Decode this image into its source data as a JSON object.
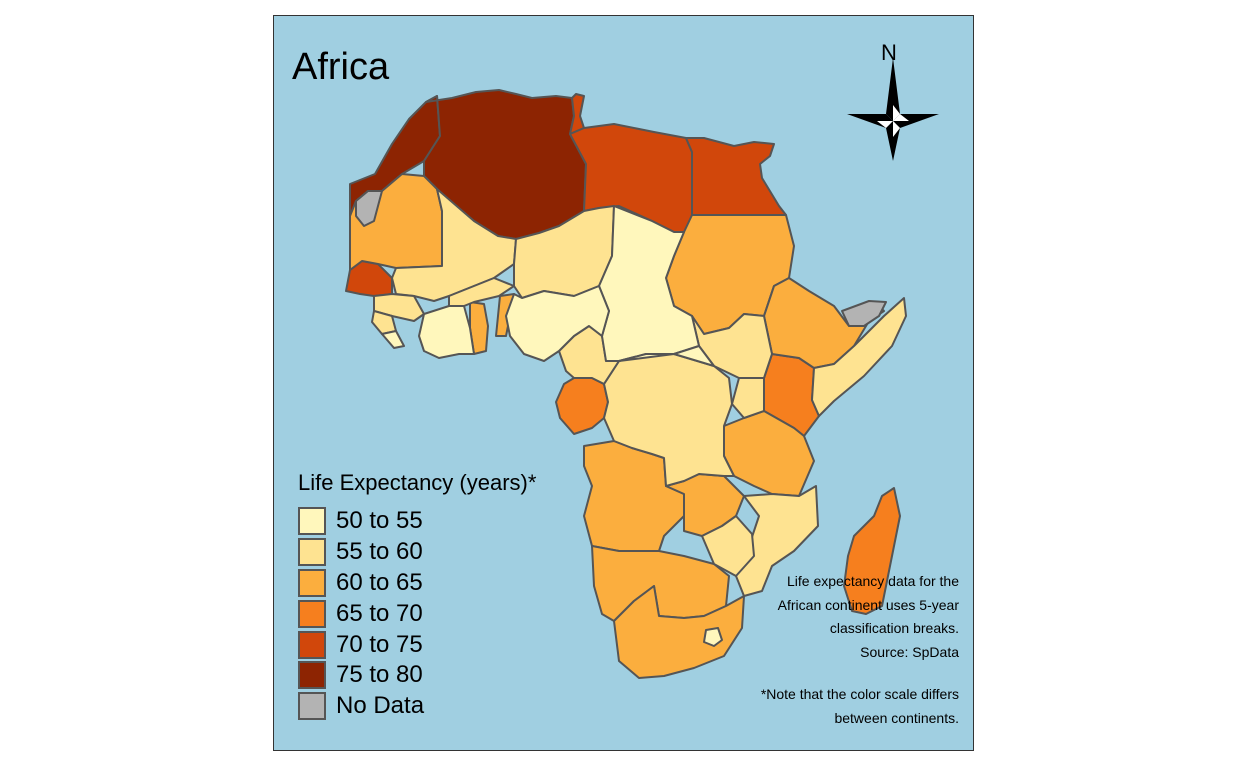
{
  "map": {
    "title": "Africa",
    "compass_label": "N",
    "water_color": "#a0cfe1",
    "border_color": "#555555"
  },
  "legend": {
    "title": "Life Expectancy (years)*",
    "items": [
      {
        "label": "50 to 55",
        "color": "#fff7bc"
      },
      {
        "label": "55 to 60",
        "color": "#fee391"
      },
      {
        "label": "60 to 65",
        "color": "#fbae3e"
      },
      {
        "label": "65 to 70",
        "color": "#f67f1e"
      },
      {
        "label": "70 to 75",
        "color": "#d1470b"
      },
      {
        "label": "75 to 80",
        "color": "#8d2402"
      },
      {
        "label": "No Data",
        "color": "#b3b3b3"
      }
    ]
  },
  "notes": {
    "lines_1": [
      "Life expectancy data for the",
      "African continent uses 5-year",
      "classification breaks.",
      "Source: SpData"
    ],
    "lines_2": [
      "*Note that the color scale differs",
      "between continents."
    ]
  }
}
